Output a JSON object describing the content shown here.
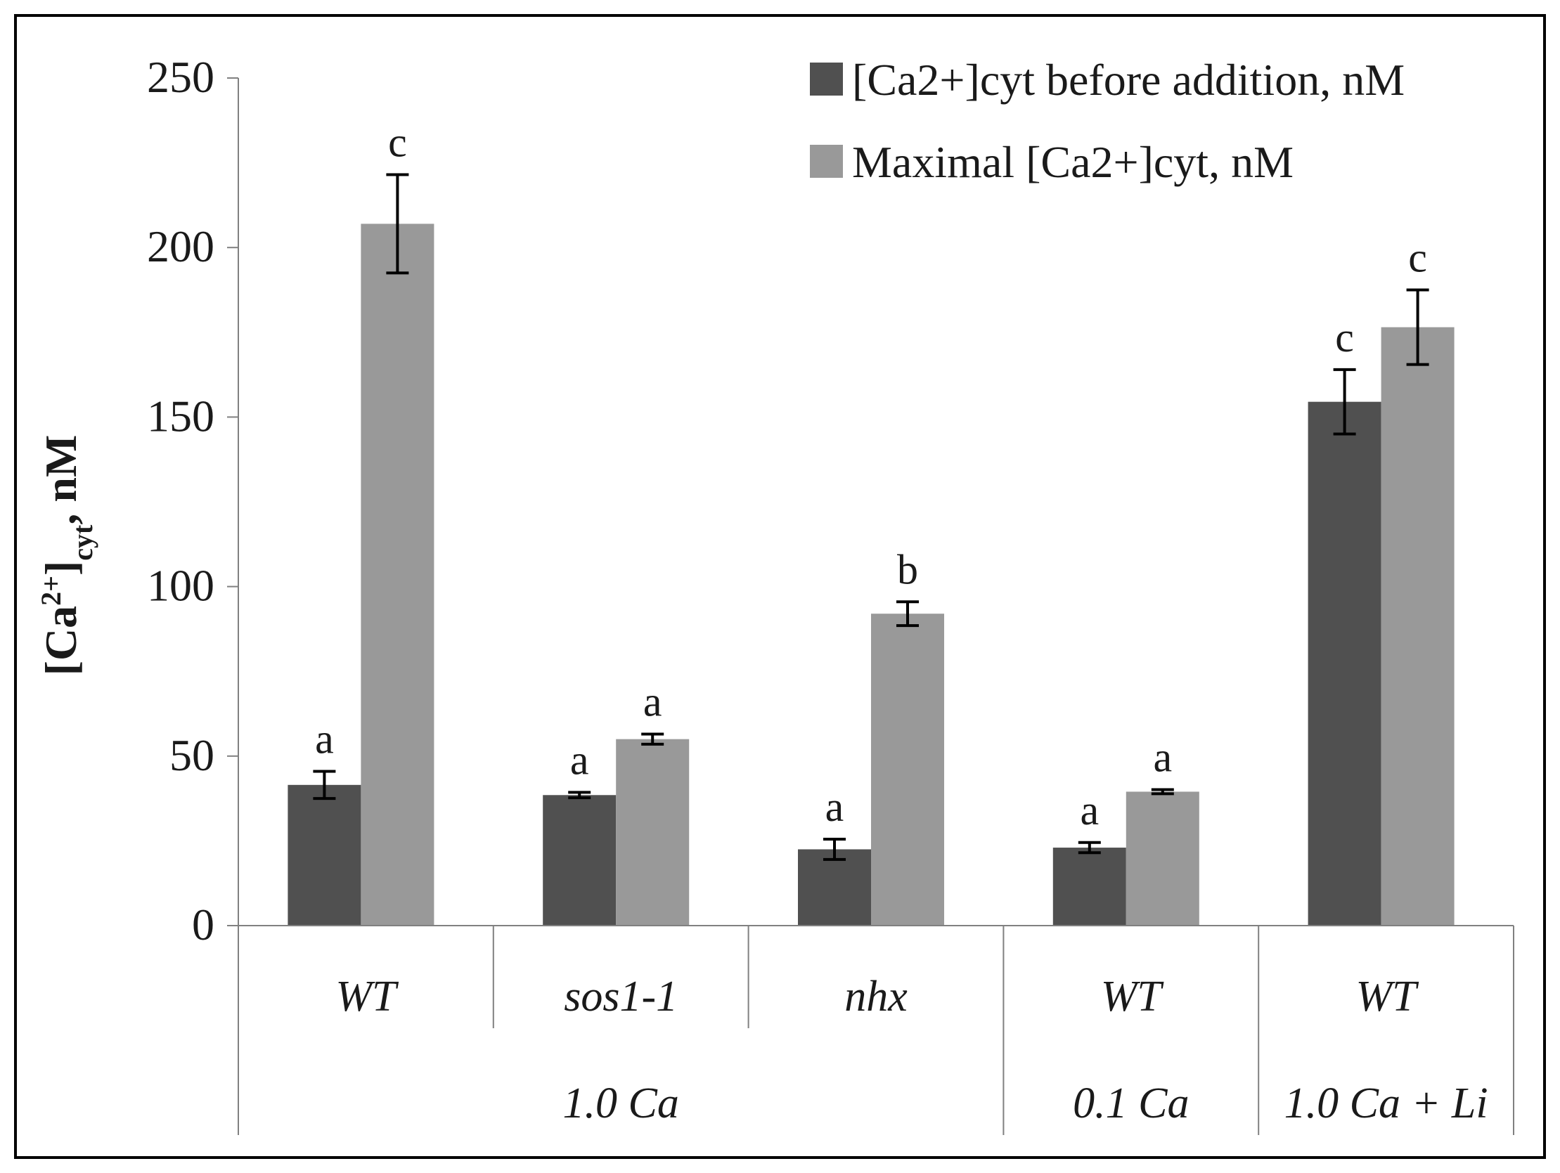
{
  "chart_data": {
    "type": "bar",
    "title": "",
    "ylabel": {
      "prefix": "[Ca",
      "superscript": "2+",
      "close": "]",
      "subscript": "cyt",
      "suffix": ", nM"
    },
    "xlabel": "",
    "ylim": [
      0,
      250
    ],
    "yticks": [
      "0",
      "50",
      "100",
      "150",
      "200",
      "250"
    ],
    "grid": false,
    "legend_position": "top-right",
    "categories": [
      "WT",
      "sos1-1",
      "nhx",
      "WT",
      "WT"
    ],
    "groups": [
      {
        "label": "1.0 Ca",
        "span": 3
      },
      {
        "label": "0.1 Ca",
        "span": 1
      },
      {
        "label": "1.0 Ca + Li",
        "span": 1
      }
    ],
    "series": [
      {
        "name": "[Ca2+]cyt before addition, nM",
        "color": "#505050",
        "values": [
          41.5,
          38.5,
          22.5,
          23,
          154.5
        ],
        "errors": [
          4,
          0.8,
          3,
          1.5,
          9.5
        ],
        "letters": [
          "a",
          "a",
          "a",
          "a",
          "c"
        ]
      },
      {
        "name": "Maximal [Ca2+]cyt, nM",
        "color": "#999999",
        "values": [
          207,
          55,
          92,
          39.5,
          176.5
        ],
        "errors": [
          14.5,
          1.5,
          3.5,
          0.6,
          11
        ],
        "letters": [
          "c",
          "a",
          "b",
          "a",
          "c"
        ]
      }
    ]
  }
}
